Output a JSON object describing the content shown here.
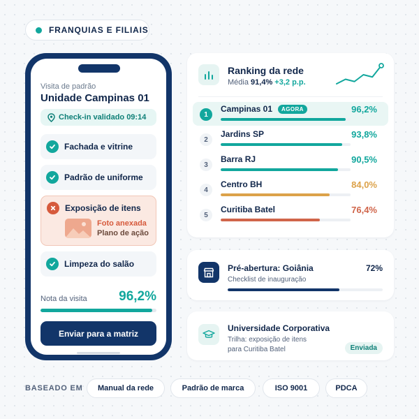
{
  "tag": {
    "label": "FRANQUIAS E FILIAIS",
    "accent": "#12a79d"
  },
  "phone": {
    "visit_label": "Visita de padrão",
    "unit_title": "Unidade Campinas 01",
    "checkin": "Check-in validado 09:14",
    "checklist": [
      {
        "label": "Fachada e vitrine",
        "status": "ok",
        "icon": "check-icon"
      },
      {
        "label": "Padrão de uniforme",
        "status": "ok",
        "icon": "check-icon"
      },
      {
        "label": "Exposição de itens",
        "status": "fail",
        "icon": "x-icon",
        "attachment": "Foto anexada",
        "action": "Plano de ação"
      },
      {
        "label": "Limpeza do salão",
        "status": "ok",
        "icon": "check-icon"
      }
    ],
    "score_label": "Nota da visita",
    "score_value": "96,2%",
    "score_fraction": 0.962,
    "send_button": "Enviar para a matriz"
  },
  "ranking": {
    "title": "Ranking da rede",
    "avg_label": "Média",
    "avg_value": "91,4%",
    "delta": "+3,2 p.p.",
    "sparkline": [
      2,
      3,
      2.5,
      4,
      3.5,
      6
    ],
    "rows": [
      {
        "rank": "1",
        "name": "Campinas 01",
        "badge": "AGORA",
        "value": "96,2%",
        "fraction": 0.962,
        "color": "#12a79d",
        "highlight": true
      },
      {
        "rank": "2",
        "name": "Jardins SP",
        "value": "93,8%",
        "fraction": 0.938,
        "color": "#12a79d"
      },
      {
        "rank": "3",
        "name": "Barra RJ",
        "value": "90,5%",
        "fraction": 0.905,
        "color": "#12a79d"
      },
      {
        "rank": "4",
        "name": "Centro BH",
        "value": "84,0%",
        "fraction": 0.84,
        "color": "#dca24a"
      },
      {
        "rank": "5",
        "name": "Curitiba Batel",
        "value": "76,4%",
        "fraction": 0.764,
        "color": "#d0654a"
      }
    ]
  },
  "preopening": {
    "title": "Pré-abertura: Goiânia",
    "subtitle": "Checklist de inauguração",
    "percent": "72%",
    "fraction": 0.72
  },
  "university": {
    "title": "Universidade Corporativa",
    "subtitle_line1": "Trilha: exposição de itens",
    "subtitle_line2": "para Curitiba Batel",
    "badge": "Enviada"
  },
  "footer": {
    "label": "BASEADO EM",
    "chips": [
      "Manual da rede",
      "Padrão de marca",
      "ISO 9001",
      "PDCA"
    ]
  }
}
